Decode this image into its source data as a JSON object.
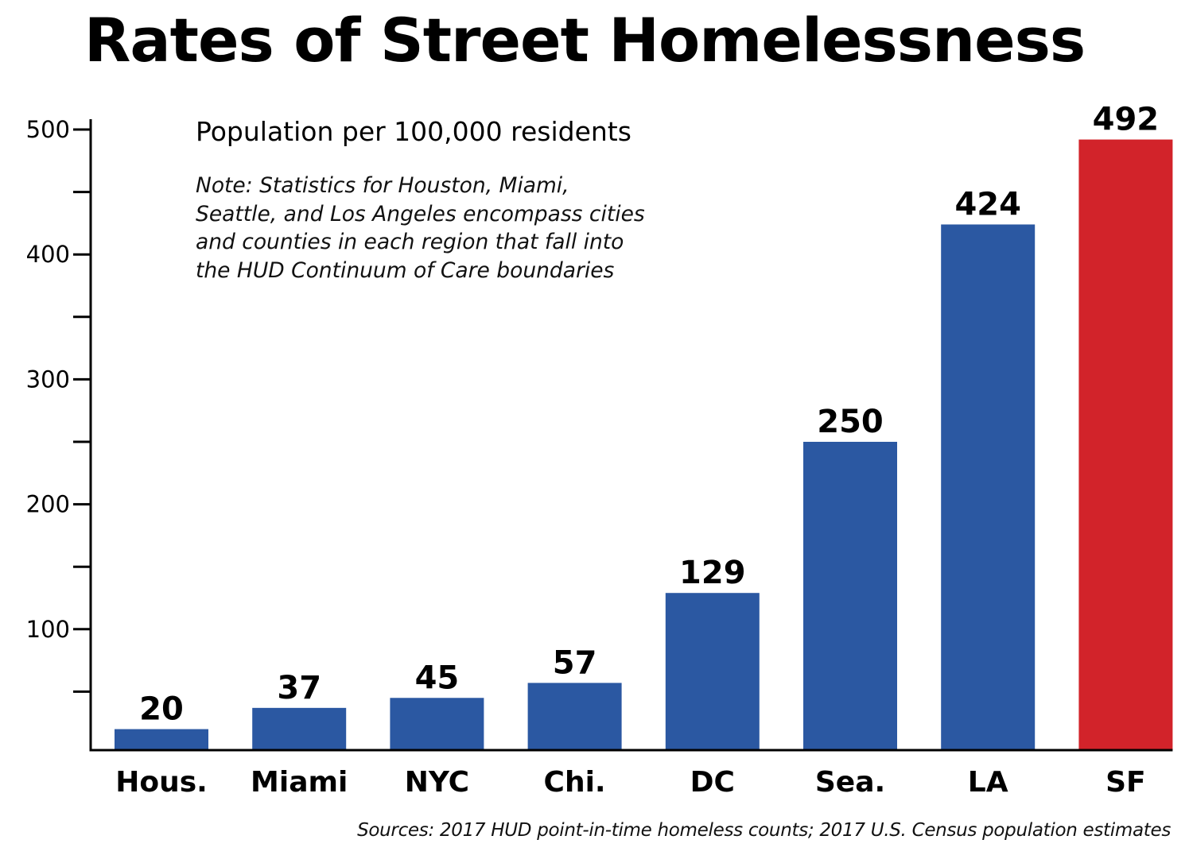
{
  "chart_data": {
    "type": "bar",
    "title": "Rates of Street Homelessness",
    "subtitle": "Population per 100,000 residents",
    "note": "Note: Statistics for Houston, Miami, Seattle, and Los Angeles encompass cities and counties in each region that fall into the HUD Continuum of Care boundaries",
    "sources": "Sources: 2017 HUD point-in-time homeless counts; 2017 U.S. Census population estimates",
    "xlabel": "",
    "ylabel": "",
    "categories": [
      "Hous.",
      "Miami",
      "NYC",
      "Chi.",
      "DC",
      "Sea.",
      "LA",
      "SF"
    ],
    "values": [
      20,
      37,
      45,
      57,
      129,
      250,
      424,
      492
    ],
    "value_labels": [
      "20",
      "37",
      "45",
      "57",
      "129",
      "250",
      "424",
      "492"
    ],
    "highlight_category": "SF",
    "colors": {
      "default": "#2b58a2",
      "highlight": "#d2232a",
      "axis": "#000000"
    },
    "ylim": [
      0,
      500
    ],
    "y_ticks_major": [
      100,
      200,
      300,
      400,
      500
    ],
    "y_tick_labels": [
      "100",
      "200",
      "300",
      "400",
      "500"
    ],
    "y_ticks_minor": [
      50,
      150,
      250,
      350,
      450
    ],
    "grid": false,
    "legend": "none"
  }
}
